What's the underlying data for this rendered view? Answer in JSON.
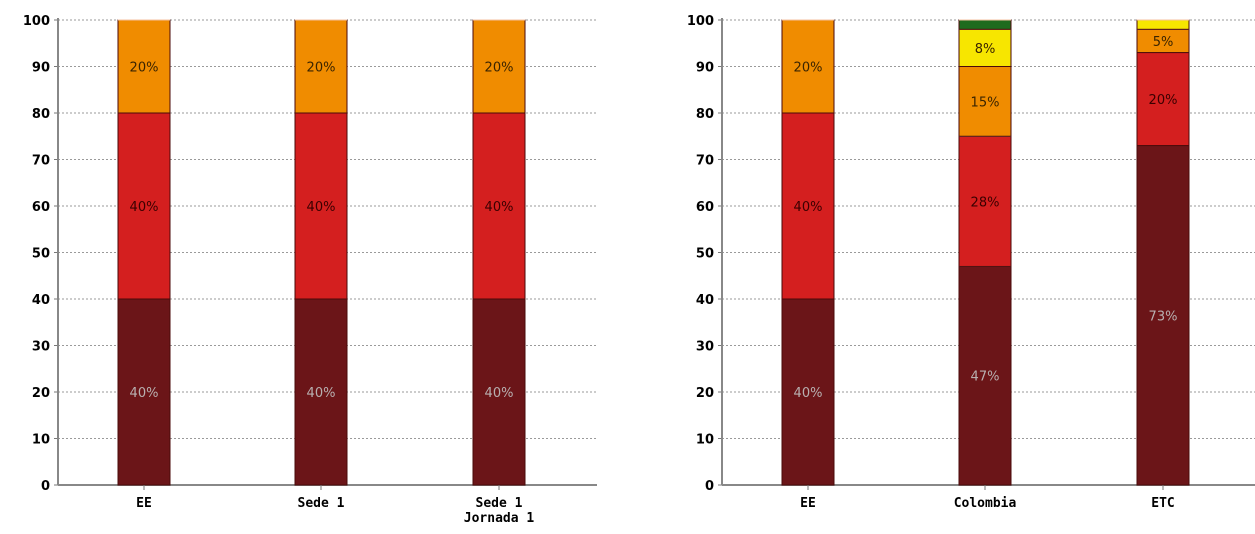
{
  "chart_data": [
    {
      "type": "bar",
      "stacked": true,
      "ylim": [
        0,
        100
      ],
      "yticks": [
        "0",
        "10",
        "20",
        "30",
        "40",
        "50",
        "60",
        "70",
        "80",
        "90",
        "100"
      ],
      "grid": true,
      "categories": [
        [
          "EE"
        ],
        [
          "Sede 1"
        ],
        [
          "Sede 1",
          "Jornada 1"
        ]
      ],
      "series": [
        {
          "color": "#6b1518",
          "values": [
            40,
            40,
            40
          ],
          "labels": [
            "40%",
            "40%",
            "40%"
          ]
        },
        {
          "color": "#d41f1f",
          "values": [
            40,
            40,
            40
          ],
          "labels": [
            "40%",
            "40%",
            "40%"
          ]
        },
        {
          "color": "#f08c00",
          "values": [
            20,
            20,
            20
          ],
          "labels": [
            "20%",
            "20%",
            "20%"
          ]
        },
        {
          "color": "#f7e600",
          "values": [
            0,
            0,
            0
          ],
          "labels": [
            "",
            "",
            ""
          ]
        },
        {
          "color": "#1e6b1e",
          "values": [
            0,
            0,
            0
          ],
          "labels": [
            "",
            "",
            ""
          ]
        }
      ]
    },
    {
      "type": "bar",
      "stacked": true,
      "ylim": [
        0,
        100
      ],
      "yticks": [
        "0",
        "10",
        "20",
        "30",
        "40",
        "50",
        "60",
        "70",
        "80",
        "90",
        "100"
      ],
      "grid": true,
      "categories": [
        [
          "EE"
        ],
        [
          "Colombia"
        ],
        [
          "ETC"
        ]
      ],
      "series": [
        {
          "color": "#6b1518",
          "values": [
            40,
            47,
            73
          ],
          "labels": [
            "40%",
            "47%",
            "73%"
          ]
        },
        {
          "color": "#d41f1f",
          "values": [
            40,
            28,
            20
          ],
          "labels": [
            "40%",
            "28%",
            "20%"
          ]
        },
        {
          "color": "#f08c00",
          "values": [
            20,
            15,
            5
          ],
          "labels": [
            "20%",
            "15%",
            "5%"
          ]
        },
        {
          "color": "#f7e600",
          "values": [
            0,
            8,
            2
          ],
          "labels": [
            "",
            "8%",
            ""
          ]
        },
        {
          "color": "#1e6b1e",
          "values": [
            0,
            2,
            0
          ],
          "labels": [
            "",
            "",
            ""
          ]
        }
      ]
    }
  ]
}
